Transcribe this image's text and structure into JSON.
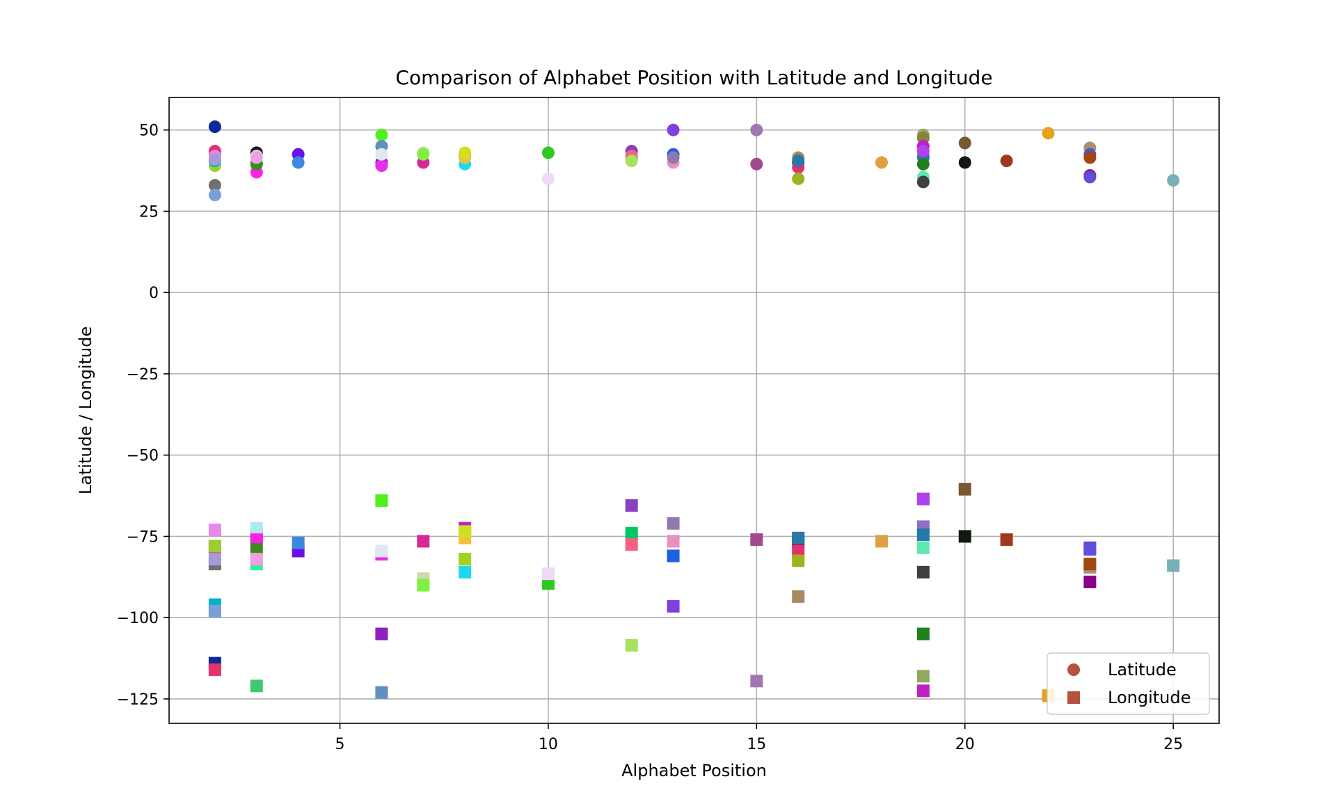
{
  "chart_data": {
    "type": "scatter",
    "title": "Comparison of Alphabet Position with Latitude and Longitude",
    "xlabel": "Alphabet Position",
    "ylabel": "Latitude / Longitude",
    "xlim": [
      0.9,
      26.1
    ],
    "ylim": [
      -132.5,
      60
    ],
    "xticks": [
      5,
      10,
      15,
      20,
      25
    ],
    "yticks": [
      50,
      25,
      0,
      -25,
      -50,
      -75,
      -100,
      -125
    ],
    "grid": true,
    "legend": {
      "placement": "bottom-right",
      "entries": [
        {
          "label": "Latitude",
          "marker": "circle",
          "color": "#b5513d"
        },
        {
          "label": "Longitude",
          "marker": "square",
          "color": "#b5513d"
        }
      ]
    },
    "points": [
      {
        "x": 2,
        "lat": 51,
        "lon": -114,
        "color": "#0a2a9a"
      },
      {
        "x": 2,
        "lat": 43.5,
        "lon": -116,
        "color": "#e8326a"
      },
      {
        "x": 2,
        "lat": 42.5,
        "lon": -78.5,
        "color": "#d8307a"
      },
      {
        "x": 2,
        "lat": 39,
        "lon": -78,
        "color": "#9acd32"
      },
      {
        "x": 2,
        "lat": 40.5,
        "lon": -96,
        "color": "#00b4c8"
      },
      {
        "x": 2,
        "lat": 33,
        "lon": -83.5,
        "color": "#707070"
      },
      {
        "x": 2,
        "lat": 30,
        "lon": -98,
        "color": "#7b9fd4"
      },
      {
        "x": 2,
        "lat": 42,
        "lon": -73,
        "color": "#e888e8"
      },
      {
        "x": 2,
        "lat": 41,
        "lon": -82,
        "color": "#a89ad8"
      },
      {
        "x": 3,
        "lat": 43,
        "lon": -75,
        "color": "#2a1010"
      },
      {
        "x": 3,
        "lat": 42,
        "lon": -72.5,
        "color": "#b0e8f0"
      },
      {
        "x": 3,
        "lat": 40,
        "lon": -83.5,
        "color": "#30f0a0"
      },
      {
        "x": 3,
        "lat": 37,
        "lon": -76,
        "color": "#ff20e8"
      },
      {
        "x": 3,
        "lat": 39.5,
        "lon": -121,
        "color": "#40c870"
      },
      {
        "x": 3,
        "lat": 39.5,
        "lon": -79,
        "color": "#3a8a20"
      },
      {
        "x": 3,
        "lat": 41.5,
        "lon": -82,
        "color": "#f0a0e0"
      },
      {
        "x": 4,
        "lat": 42.5,
        "lon": -79.5,
        "color": "#6a10e8"
      },
      {
        "x": 4,
        "lat": 40,
        "lon": -77,
        "color": "#3a88e0"
      },
      {
        "x": 6,
        "lat": 48.5,
        "lon": -64,
        "color": "#50f020"
      },
      {
        "x": 6,
        "lat": 45,
        "lon": -123,
        "color": "#6090c0"
      },
      {
        "x": 6,
        "lat": 40,
        "lon": -105,
        "color": "#9020c0"
      },
      {
        "x": 6,
        "lat": 39,
        "lon": -80.5,
        "color": "#e830e8"
      },
      {
        "x": 6,
        "lat": 42.5,
        "lon": -79.5,
        "color": "#e0e8f0"
      },
      {
        "x": 7,
        "lat": 43,
        "lon": -88,
        "color": "#d0d8b0"
      },
      {
        "x": 7,
        "lat": 40,
        "lon": -76.5,
        "color": "#d82898"
      },
      {
        "x": 7,
        "lat": 42.5,
        "lon": -90,
        "color": "#80f040"
      },
      {
        "x": 8,
        "lat": 42.5,
        "lon": -82,
        "color": "#a0d020"
      },
      {
        "x": 8,
        "lat": 39.5,
        "lon": -86,
        "color": "#20d8e8"
      },
      {
        "x": 8,
        "lat": 42,
        "lon": -72.5,
        "color": "#c820c8"
      },
      {
        "x": 8,
        "lat": 41.5,
        "lon": -75.5,
        "color": "#f0c040"
      },
      {
        "x": 8,
        "lat": 43,
        "lon": -73.5,
        "color": "#d0e020"
      },
      {
        "x": 10,
        "lat": 43,
        "lon": -89.5,
        "color": "#30c820"
      },
      {
        "x": 10,
        "lat": 35,
        "lon": -86.5,
        "color": "#f0d8f8"
      },
      {
        "x": 12,
        "lat": 43.5,
        "lon": -65.5,
        "color": "#8840c0"
      },
      {
        "x": 12,
        "lat": 41,
        "lon": -74,
        "color": "#00c860"
      },
      {
        "x": 12,
        "lat": 42,
        "lon": -77.5,
        "color": "#f86080"
      },
      {
        "x": 12,
        "lat": 40.5,
        "lon": -108.5,
        "color": "#a8e060"
      },
      {
        "x": 13,
        "lat": 50,
        "lon": -96.5,
        "color": "#8040e0"
      },
      {
        "x": 13,
        "lat": 42.5,
        "lon": -81,
        "color": "#2060e0"
      },
      {
        "x": 13,
        "lat": 40,
        "lon": -76.5,
        "color": "#e890c0"
      },
      {
        "x": 13,
        "lat": 41.5,
        "lon": -71,
        "color": "#9078b0"
      },
      {
        "x": 15,
        "lat": 50,
        "lon": -119.5,
        "color": "#a078b0"
      },
      {
        "x": 15,
        "lat": 39.5,
        "lon": -76,
        "color": "#a04890"
      },
      {
        "x": 16,
        "lat": 41.5,
        "lon": -93.5,
        "color": "#a88860"
      },
      {
        "x": 16,
        "lat": 40,
        "lon": -76.5,
        "color": "#500060"
      },
      {
        "x": 16,
        "lat": 38.5,
        "lon": -79.5,
        "color": "#e03070"
      },
      {
        "x": 16,
        "lat": 35,
        "lon": -82.5,
        "color": "#a0b020"
      },
      {
        "x": 16,
        "lat": 40.5,
        "lon": -75.5,
        "color": "#2878a8"
      },
      {
        "x": 18,
        "lat": 40,
        "lon": -76.5,
        "color": "#e0a040"
      },
      {
        "x": 19,
        "lat": 48.5,
        "lon": -118,
        "color": "#90a860"
      },
      {
        "x": 19,
        "lat": 47.5,
        "lon": -63.5,
        "color": "#8a8040"
      },
      {
        "x": 19,
        "lat": 45,
        "lon": -122.5,
        "color": "#c020c0"
      },
      {
        "x": 19,
        "lat": 42,
        "lon": -72,
        "color": "#9070c0"
      },
      {
        "x": 19,
        "lat": 41.5,
        "lon": -74.5,
        "color": "#2878a8"
      },
      {
        "x": 19,
        "lat": 39.5,
        "lon": -105,
        "color": "#208020"
      },
      {
        "x": 19,
        "lat": 35.5,
        "lon": -78.5,
        "color": "#60e8b0"
      },
      {
        "x": 19,
        "lat": 34,
        "lon": -86,
        "color": "#404040"
      },
      {
        "x": 19,
        "lat": 43.5,
        "lon": -63.5,
        "color": "#b040f0"
      },
      {
        "x": 20,
        "lat": 46,
        "lon": -60.5,
        "color": "#7a5830"
      },
      {
        "x": 20,
        "lat": 40,
        "lon": -75,
        "color": "#101810"
      },
      {
        "x": 21,
        "lat": 40.5,
        "lon": -76,
        "color": "#a03820"
      },
      {
        "x": 22,
        "lat": 49,
        "lon": -124,
        "color": "#e8a020"
      },
      {
        "x": 23,
        "lat": 44.5,
        "lon": -84.5,
        "color": "#a89070"
      },
      {
        "x": 23,
        "lat": 42.5,
        "lon": -78.5,
        "color": "#5050d0"
      },
      {
        "x": 23,
        "lat": 41.5,
        "lon": -83.5,
        "color": "#a04810"
      },
      {
        "x": 23,
        "lat": 36,
        "lon": -89,
        "color": "#880088"
      },
      {
        "x": 23,
        "lat": 35.5,
        "lon": -79,
        "color": "#6050d8"
      },
      {
        "x": 25,
        "lat": 34.5,
        "lon": -84,
        "color": "#78b0b8"
      }
    ]
  }
}
